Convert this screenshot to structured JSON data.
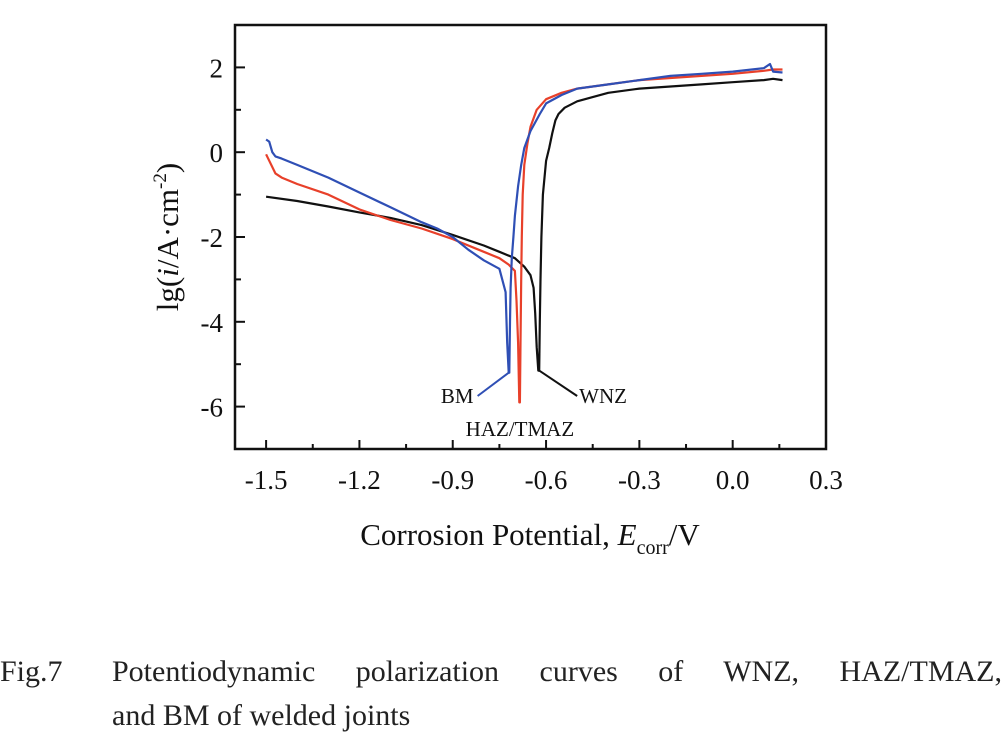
{
  "chart_data": {
    "type": "line",
    "title": "",
    "xlabel": "Corrosion Potential, E_corr/V",
    "xlabel_parts": {
      "prefix": "Corrosion Potential, ",
      "italic": "E",
      "sub": "corr",
      "suffix": "/V"
    },
    "ylabel": "lg(i/A·cm^-2)",
    "ylabel_parts": {
      "prefix": "lg(",
      "italic": "i",
      "mid": "/A·cm",
      "sup": "-2",
      "suffix": ")"
    },
    "xlim": [
      -1.6,
      0.3
    ],
    "ylim": [
      -7,
      3
    ],
    "xticks": [
      -1.5,
      -1.2,
      -0.9,
      -0.6,
      -0.3,
      0.0,
      0.3
    ],
    "xtick_labels": [
      "-1.5",
      "-1.2",
      "-0.9",
      "-0.6",
      "-0.3",
      "0.0",
      "0.3"
    ],
    "xminor": [
      -1.35,
      -1.05,
      -0.75,
      -0.45,
      -0.15,
      0.15
    ],
    "yticks": [
      2,
      0,
      -2,
      -4,
      -6
    ],
    "ytick_labels": [
      "2",
      "0",
      "-2",
      "-4",
      "-6"
    ],
    "yminor": [
      1,
      -1,
      -3,
      -5
    ],
    "grid": false,
    "legend": "none (inline annotations)",
    "series": [
      {
        "name": "WNZ",
        "color": "#111111",
        "x": [
          -1.5,
          -1.4,
          -1.3,
          -1.2,
          -1.1,
          -1.0,
          -0.9,
          -0.8,
          -0.75,
          -0.7,
          -0.67,
          -0.65,
          -0.64,
          -0.635,
          -0.63,
          -0.625,
          -0.622,
          -0.62,
          -0.618,
          -0.615,
          -0.61,
          -0.6,
          -0.59,
          -0.58,
          -0.57,
          -0.56,
          -0.54,
          -0.5,
          -0.45,
          -0.4,
          -0.3,
          -0.2,
          -0.1,
          0.0,
          0.1,
          0.13,
          0.16
        ],
        "y": [
          -1.05,
          -1.15,
          -1.28,
          -1.42,
          -1.55,
          -1.72,
          -1.95,
          -2.2,
          -2.35,
          -2.5,
          -2.7,
          -2.9,
          -3.2,
          -3.8,
          -4.6,
          -5.15,
          -5.15,
          -4.0,
          -3.0,
          -2.0,
          -1.0,
          -0.2,
          0.1,
          0.45,
          0.75,
          0.9,
          1.05,
          1.2,
          1.3,
          1.4,
          1.5,
          1.55,
          1.6,
          1.65,
          1.7,
          1.73,
          1.7
        ]
      },
      {
        "name": "HAZ/TMAZ",
        "color": "#e8402a",
        "x": [
          -1.5,
          -1.49,
          -1.47,
          -1.45,
          -1.4,
          -1.3,
          -1.2,
          -1.1,
          -1.0,
          -0.9,
          -0.8,
          -0.75,
          -0.72,
          -0.7,
          -0.695,
          -0.69,
          -0.686,
          -0.684,
          -0.682,
          -0.68,
          -0.678,
          -0.675,
          -0.67,
          -0.66,
          -0.65,
          -0.63,
          -0.6,
          -0.55,
          -0.5,
          -0.4,
          -0.3,
          -0.2,
          -0.1,
          0.0,
          0.1,
          0.13,
          0.16
        ],
        "y": [
          -0.05,
          -0.2,
          -0.5,
          -0.6,
          -0.75,
          -1.0,
          -1.35,
          -1.6,
          -1.8,
          -2.05,
          -2.35,
          -2.5,
          -2.65,
          -2.8,
          -3.5,
          -4.5,
          -5.9,
          -5.9,
          -4.5,
          -3.0,
          -2.0,
          -1.0,
          -0.3,
          0.2,
          0.6,
          1.0,
          1.25,
          1.4,
          1.5,
          1.6,
          1.7,
          1.75,
          1.8,
          1.85,
          1.92,
          1.95,
          1.95
        ]
      },
      {
        "name": "BM",
        "color": "#2f4fb5",
        "x": [
          -1.5,
          -1.49,
          -1.48,
          -1.47,
          -1.45,
          -1.4,
          -1.3,
          -1.2,
          -1.1,
          -1.0,
          -0.95,
          -0.9,
          -0.85,
          -0.8,
          -0.75,
          -0.73,
          -0.725,
          -0.72,
          -0.718,
          -0.716,
          -0.714,
          -0.71,
          -0.705,
          -0.7,
          -0.69,
          -0.68,
          -0.67,
          -0.65,
          -0.62,
          -0.6,
          -0.55,
          -0.5,
          -0.4,
          -0.3,
          -0.2,
          -0.1,
          0.0,
          0.1,
          0.12,
          0.13,
          0.16
        ],
        "y": [
          0.3,
          0.25,
          0.0,
          -0.1,
          -0.15,
          -0.3,
          -0.6,
          -0.95,
          -1.3,
          -1.65,
          -1.8,
          -2.0,
          -2.3,
          -2.55,
          -2.75,
          -3.3,
          -4.5,
          -5.2,
          -5.2,
          -4.0,
          -3.2,
          -2.5,
          -2.0,
          -1.5,
          -0.8,
          -0.3,
          0.1,
          0.5,
          0.9,
          1.15,
          1.35,
          1.5,
          1.6,
          1.7,
          1.8,
          1.85,
          1.9,
          1.98,
          2.08,
          1.9,
          1.88
        ]
      }
    ],
    "annotations": [
      {
        "text": "BM",
        "series": "BM",
        "point": [
          -0.72,
          -5.2
        ],
        "label_at": [
          -0.82,
          -5.75
        ]
      },
      {
        "text": "HAZ/TMAZ",
        "series": "HAZ/TMAZ",
        "point": [
          -0.684,
          -5.9
        ],
        "label_at": [
          -0.684,
          -6.5
        ]
      },
      {
        "text": "WNZ",
        "series": "WNZ",
        "point": [
          -0.622,
          -5.15
        ],
        "label_at": [
          -0.5,
          -5.75
        ]
      }
    ]
  },
  "caption": {
    "figure_number": "Fig.7",
    "line1": "Potentiodynamic polarization curves of WNZ, HAZ/TMAZ,",
    "line2": "and BM of welded joints"
  }
}
